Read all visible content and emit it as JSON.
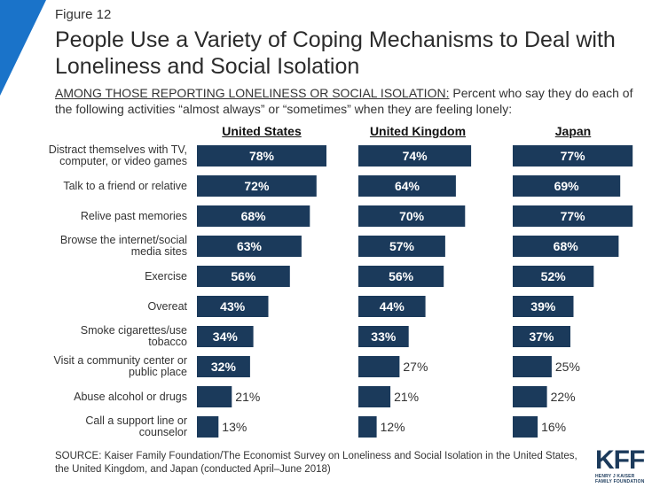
{
  "figure_label": "Figure 12",
  "title": "People Use a Variety of Coping Mechanisms to Deal with Loneliness and Social Isolation",
  "subtitle_caps": "AMONG THOSE REPORTING LONELINESS OR SOCIAL ISOLATION:",
  "subtitle_rest": " Percent who say they do each of the following activities “almost always” or “sometimes” when they are feeling lonely:",
  "source": "SOURCE: Kaiser Family Foundation/The Economist Survey on Loneliness and Social Isolation in the United States, the United Kingdom, and Japan (conducted April–June 2018)",
  "logo": {
    "mark": "KFF",
    "line1": "HENRY J KAISER",
    "line2": "FAMILY FOUNDATION"
  },
  "colors": {
    "bar": "#1b3a5b",
    "corner": "#1a73c9",
    "label_inside": "#ffffff",
    "label_outside": "#333333"
  },
  "chart_data": {
    "type": "bar",
    "orientation": "horizontal",
    "categories": [
      [
        "Distract themselves with TV,",
        "computer, or video games"
      ],
      [
        "Talk to a friend or relative"
      ],
      [
        "Relive past memories"
      ],
      [
        "Browse the internet/social",
        "media sites"
      ],
      [
        "Exercise"
      ],
      [
        "Overeat"
      ],
      [
        "Smoke cigarettes/use",
        "tobacco"
      ],
      [
        "Visit a community center or",
        "public place"
      ],
      [
        "Abuse alcohol or drugs"
      ],
      [
        "Call a support line or",
        "counselor"
      ]
    ],
    "series": [
      {
        "name": "United States",
        "values": [
          78,
          72,
          68,
          63,
          56,
          43,
          34,
          32,
          21,
          13
        ]
      },
      {
        "name": "United Kingdom",
        "values": [
          74,
          64,
          70,
          57,
          56,
          44,
          33,
          27,
          21,
          12
        ]
      },
      {
        "name": "Japan",
        "values": [
          77,
          69,
          77,
          68,
          52,
          39,
          37,
          25,
          22,
          16
        ]
      }
    ],
    "value_suffix": "%",
    "xlim": [
      0,
      78
    ]
  }
}
